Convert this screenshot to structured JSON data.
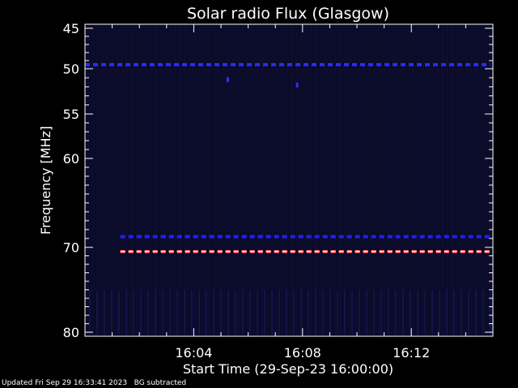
{
  "chart_data": {
    "type": "heatmap",
    "title": "Solar radio Flux (Glasgow)",
    "xlabel": "Start Time (29-Sep-23 16:00:00)",
    "ylabel": "Frequency [MHz]",
    "x_range_minutes": [
      0,
      15
    ],
    "x_tick_labels": [
      {
        "minute": 4,
        "label": "16:04"
      },
      {
        "minute": 8,
        "label": "16:08"
      },
      {
        "minute": 12,
        "label": "16:12"
      }
    ],
    "y_axis": {
      "inverted": true,
      "range": [
        45,
        80
      ],
      "log_like": true
    },
    "y_tick_labels": [
      45,
      50,
      55,
      60,
      70,
      80
    ],
    "background_color": "#0b0b2a",
    "features": [
      {
        "kind": "band",
        "frequency": 49.5,
        "start_minute": 0.0,
        "end_minute": 14.9,
        "color": "#2a2aff",
        "style": "dashed"
      },
      {
        "kind": "band",
        "frequency": 68.8,
        "start_minute": 1.3,
        "end_minute": 14.9,
        "color": "#1f1fff",
        "style": "dashed"
      },
      {
        "kind": "band",
        "frequency": 70.5,
        "start_minute": 1.3,
        "end_minute": 14.9,
        "color": "#ff4040",
        "core_color": "#ffffff",
        "style": "dashed"
      },
      {
        "kind": "dot",
        "frequency": 51.2,
        "minute": 5.25,
        "color": "#3030ff"
      },
      {
        "kind": "dot",
        "frequency": 51.8,
        "minute": 7.8,
        "color": "#3030ff"
      }
    ]
  },
  "footer": {
    "updated": "Updated Fri Sep 29 16:33:41 2023",
    "note": "BG subtracted"
  }
}
